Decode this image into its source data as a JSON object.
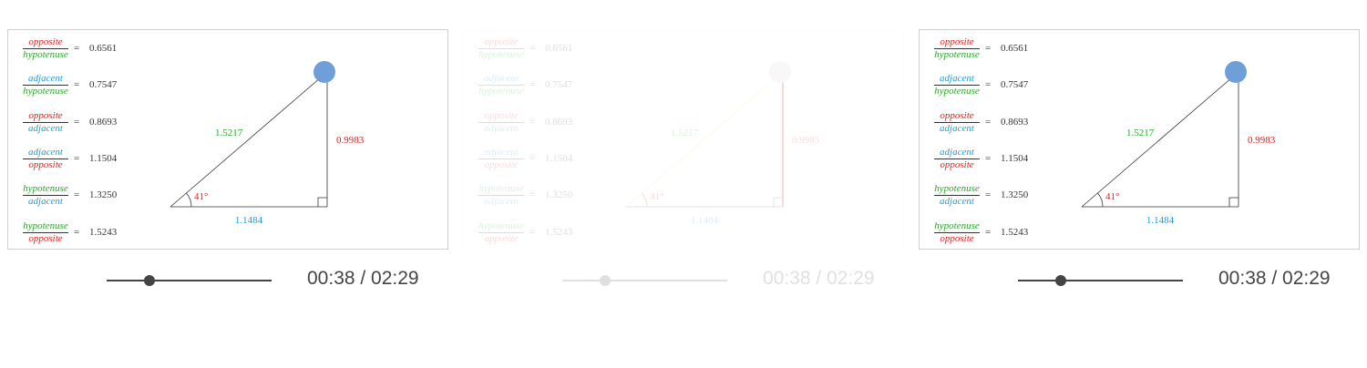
{
  "colors": {
    "opposite": "#e02020",
    "adjacent": "#1a9ee0",
    "hypotenuse": "#2aa82a",
    "handle": "#6f9fd8",
    "line": "#444444"
  },
  "icons": {
    "handle": "vertex-drag-handle",
    "right_angle": "right-angle-marker",
    "angle_arc": "angle-arc",
    "slider_knob": "slider-knob"
  },
  "ratios": [
    {
      "num": "opposite",
      "den": "hypotenuse",
      "eq": "=",
      "value": "0.6561"
    },
    {
      "num": "adjacent",
      "den": "hypotenuse",
      "eq": "=",
      "value": "0.7547"
    },
    {
      "num": "opposite",
      "den": "adjacent",
      "eq": "=",
      "value": "0.8693"
    },
    {
      "num": "adjacent",
      "den": "opposite",
      "eq": "=",
      "value": "1.1504"
    },
    {
      "num": "hypotenuse",
      "den": "adjacent",
      "eq": "=",
      "value": "1.3250"
    },
    {
      "num": "hypotenuse",
      "den": "opposite",
      "eq": "=",
      "value": "1.5243"
    }
  ],
  "triangle": {
    "angle_label": "41°",
    "hypotenuse_label": "1.5217",
    "opposite_label": "0.9983",
    "adjacent_label": "1.1484"
  },
  "player": {
    "time": "00:38 / 02:29",
    "progress": 0.26
  }
}
